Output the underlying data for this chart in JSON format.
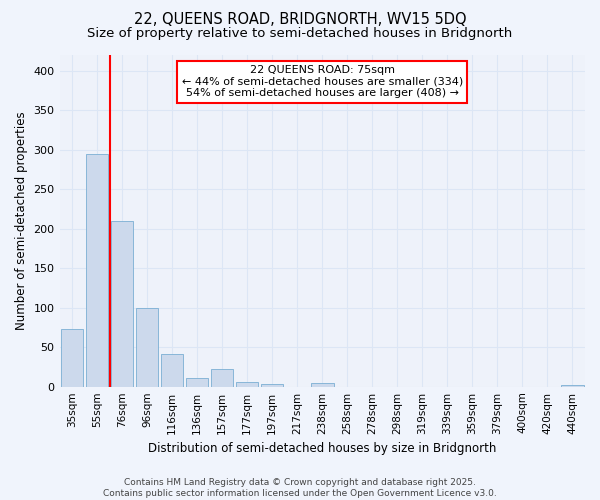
{
  "title": "22, QUEENS ROAD, BRIDGNORTH, WV15 5DQ",
  "subtitle": "Size of property relative to semi-detached houses in Bridgnorth",
  "xlabel": "Distribution of semi-detached houses by size in Bridgnorth",
  "ylabel": "Number of semi-detached properties",
  "bar_color": "#ccd9ec",
  "bar_edge_color": "#7aafd4",
  "categories": [
    "35sqm",
    "55sqm",
    "76sqm",
    "96sqm",
    "116sqm",
    "136sqm",
    "157sqm",
    "177sqm",
    "197sqm",
    "217sqm",
    "238sqm",
    "258sqm",
    "278sqm",
    "298sqm",
    "319sqm",
    "339sqm",
    "359sqm",
    "379sqm",
    "400sqm",
    "420sqm",
    "440sqm"
  ],
  "values": [
    73,
    295,
    210,
    100,
    42,
    11,
    22,
    6,
    3,
    0,
    5,
    0,
    0,
    0,
    0,
    0,
    0,
    0,
    0,
    0,
    2
  ],
  "ylim": [
    0,
    420
  ],
  "yticks": [
    0,
    50,
    100,
    150,
    200,
    250,
    300,
    350,
    400
  ],
  "annotation_title": "22 QUEENS ROAD: 75sqm",
  "annotation_line1": "← 44% of semi-detached houses are smaller (334)",
  "annotation_line2": "54% of semi-detached houses are larger (408) →",
  "vline_x": 2.0,
  "footer1": "Contains HM Land Registry data © Crown copyright and database right 2025.",
  "footer2": "Contains public sector information licensed under the Open Government Licence v3.0.",
  "background_color": "#f0f4fc",
  "grid_color": "#dce6f5",
  "plot_bg_color": "#eef2fa",
  "title_fontsize": 10.5,
  "subtitle_fontsize": 9.5,
  "tick_fontsize": 7.5,
  "ylabel_fontsize": 8.5,
  "xlabel_fontsize": 8.5,
  "footer_fontsize": 6.5,
  "ann_fontsize": 8.0
}
